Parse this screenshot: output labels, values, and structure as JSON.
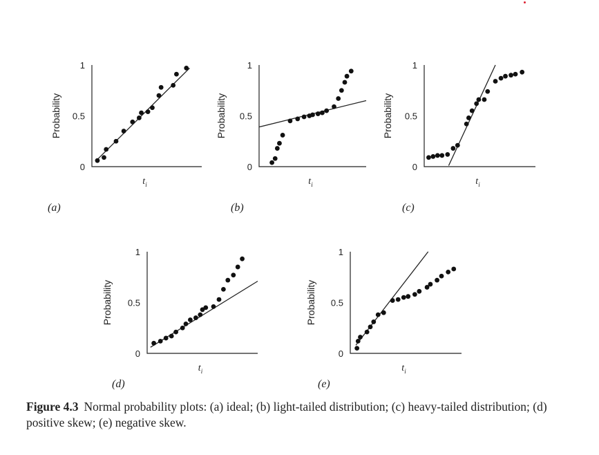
{
  "chart_data": [
    {
      "type": "scatter",
      "panel": "(a)",
      "ylabel": "Probability",
      "xlabel": "t",
      "xlabel_sub": "i",
      "yticks": [
        "0",
        "0.5",
        "1"
      ],
      "ylim": [
        0,
        1
      ],
      "xlim": [
        0,
        1
      ],
      "points": [
        [
          0.05,
          0.06
        ],
        [
          0.11,
          0.09
        ],
        [
          0.13,
          0.17
        ],
        [
          0.22,
          0.25
        ],
        [
          0.29,
          0.35
        ],
        [
          0.37,
          0.44
        ],
        [
          0.43,
          0.48
        ],
        [
          0.45,
          0.53
        ],
        [
          0.51,
          0.54
        ],
        [
          0.55,
          0.58
        ],
        [
          0.61,
          0.7
        ],
        [
          0.63,
          0.78
        ],
        [
          0.74,
          0.8
        ],
        [
          0.77,
          0.91
        ],
        [
          0.86,
          0.97
        ]
      ],
      "ref_line": [
        [
          0.04,
          0.06
        ],
        [
          0.89,
          0.97
        ]
      ]
    },
    {
      "type": "scatter",
      "panel": "(b)",
      "ylabel": "Probability",
      "xlabel": "t",
      "xlabel_sub": "i",
      "yticks": [
        "0",
        "0.5",
        "1"
      ],
      "ylim": [
        0,
        1
      ],
      "xlim": [
        0,
        1
      ],
      "points": [
        [
          0.12,
          0.04
        ],
        [
          0.15,
          0.08
        ],
        [
          0.17,
          0.18
        ],
        [
          0.19,
          0.23
        ],
        [
          0.22,
          0.31
        ],
        [
          0.29,
          0.45
        ],
        [
          0.36,
          0.47
        ],
        [
          0.42,
          0.49
        ],
        [
          0.47,
          0.5
        ],
        [
          0.5,
          0.51
        ],
        [
          0.55,
          0.52
        ],
        [
          0.59,
          0.53
        ],
        [
          0.63,
          0.55
        ],
        [
          0.7,
          0.59
        ],
        [
          0.74,
          0.67
        ],
        [
          0.77,
          0.75
        ],
        [
          0.8,
          0.83
        ],
        [
          0.82,
          0.89
        ],
        [
          0.86,
          0.94
        ]
      ],
      "ref_line": [
        [
          0.0,
          0.39
        ],
        [
          1.0,
          0.65
        ]
      ]
    },
    {
      "type": "scatter",
      "panel": "(c)",
      "ylabel": "Probability",
      "xlabel": "t",
      "xlabel_sub": "i",
      "yticks": [
        "0",
        "0.5",
        "1"
      ],
      "ylim": [
        0,
        1
      ],
      "xlim": [
        0,
        1
      ],
      "points": [
        [
          0.04,
          0.09
        ],
        [
          0.08,
          0.1
        ],
        [
          0.12,
          0.11
        ],
        [
          0.16,
          0.11
        ],
        [
          0.21,
          0.12
        ],
        [
          0.26,
          0.18
        ],
        [
          0.3,
          0.21
        ],
        [
          0.38,
          0.42
        ],
        [
          0.4,
          0.48
        ],
        [
          0.43,
          0.55
        ],
        [
          0.47,
          0.62
        ],
        [
          0.49,
          0.66
        ],
        [
          0.54,
          0.66
        ],
        [
          0.57,
          0.74
        ],
        [
          0.64,
          0.84
        ],
        [
          0.69,
          0.87
        ],
        [
          0.73,
          0.89
        ],
        [
          0.78,
          0.9
        ],
        [
          0.82,
          0.91
        ],
        [
          0.88,
          0.93
        ]
      ],
      "ref_line": [
        [
          0.22,
          0.01
        ],
        [
          0.64,
          1.0
        ]
      ]
    },
    {
      "type": "scatter",
      "panel": "(d)",
      "ylabel": "Probability",
      "xlabel": "t",
      "xlabel_sub": "i",
      "yticks": [
        "0",
        "0.5",
        "1"
      ],
      "ylim": [
        0,
        1
      ],
      "xlim": [
        0,
        1
      ],
      "points": [
        [
          0.06,
          0.1
        ],
        [
          0.12,
          0.12
        ],
        [
          0.17,
          0.15
        ],
        [
          0.22,
          0.17
        ],
        [
          0.26,
          0.21
        ],
        [
          0.32,
          0.25
        ],
        [
          0.35,
          0.29
        ],
        [
          0.39,
          0.33
        ],
        [
          0.44,
          0.35
        ],
        [
          0.48,
          0.38
        ],
        [
          0.5,
          0.43
        ],
        [
          0.53,
          0.45
        ],
        [
          0.6,
          0.46
        ],
        [
          0.65,
          0.53
        ],
        [
          0.69,
          0.63
        ],
        [
          0.73,
          0.72
        ],
        [
          0.78,
          0.77
        ],
        [
          0.82,
          0.85
        ],
        [
          0.86,
          0.93
        ]
      ],
      "ref_line": [
        [
          0.03,
          0.06
        ],
        [
          1.0,
          0.71
        ]
      ]
    },
    {
      "type": "scatter",
      "panel": "(e)",
      "ylabel": "Probability",
      "xlabel": "t",
      "xlabel_sub": "i",
      "yticks": [
        "0",
        "0.5",
        "1"
      ],
      "ylim": [
        0,
        1
      ],
      "xlim": [
        0,
        1
      ],
      "points": [
        [
          0.06,
          0.05
        ],
        [
          0.07,
          0.12
        ],
        [
          0.09,
          0.16
        ],
        [
          0.15,
          0.21
        ],
        [
          0.18,
          0.26
        ],
        [
          0.21,
          0.31
        ],
        [
          0.25,
          0.38
        ],
        [
          0.3,
          0.4
        ],
        [
          0.38,
          0.52
        ],
        [
          0.43,
          0.53
        ],
        [
          0.48,
          0.55
        ],
        [
          0.52,
          0.56
        ],
        [
          0.58,
          0.58
        ],
        [
          0.62,
          0.61
        ],
        [
          0.69,
          0.65
        ],
        [
          0.72,
          0.68
        ],
        [
          0.78,
          0.72
        ],
        [
          0.82,
          0.76
        ],
        [
          0.88,
          0.8
        ],
        [
          0.93,
          0.83
        ]
      ],
      "ref_line": [
        [
          0.05,
          0.08
        ],
        [
          0.7,
          1.0
        ]
      ]
    }
  ],
  "caption": {
    "label": "Figure 4.3",
    "text": "Normal probability plots: (a) ideal; (b) light-tailed distribution; (c) heavy-tailed distribution; (d) positive skew; (e) negative skew."
  }
}
